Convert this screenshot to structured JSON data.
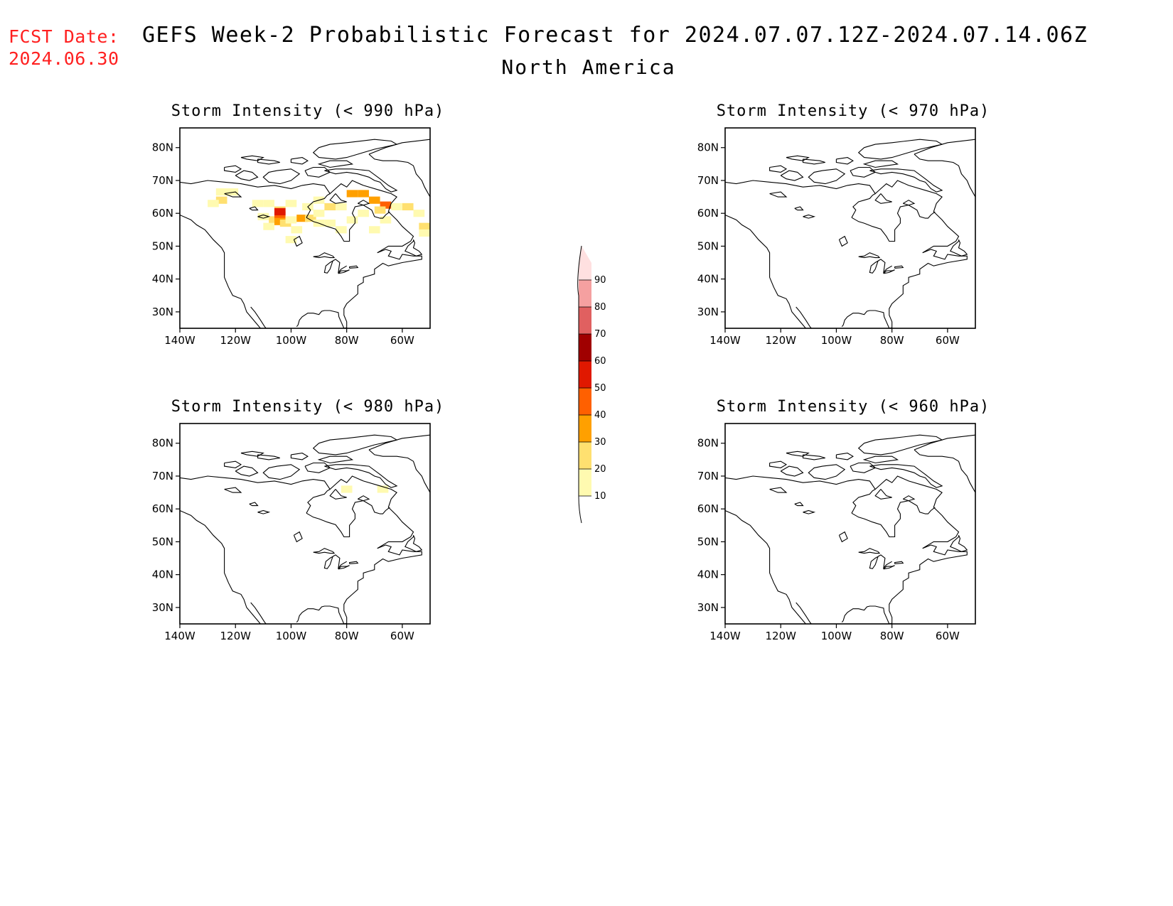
{
  "header": {
    "fcst_label": "FCST Date:",
    "fcst_date": "2024.06.30",
    "title": "GEFS Week-2 Probabilistic Forecast for 2024.07.07.12Z-2024.07.14.06Z",
    "region": "North America"
  },
  "axes": {
    "lat_ticks": [
      "80N",
      "70N",
      "60N",
      "50N",
      "40N",
      "30N"
    ],
    "lon_ticks": [
      "140W",
      "120W",
      "100W",
      "80W",
      "60W"
    ],
    "lat_range": [
      25,
      86
    ],
    "lon_range": [
      -140,
      -50
    ]
  },
  "panels": [
    {
      "id": "p990",
      "title": "Storm Intensity (< 990 hPa)",
      "threshold_hpa": 990,
      "has_data": true
    },
    {
      "id": "p970",
      "title": "Storm Intensity (< 970 hPa)",
      "threshold_hpa": 970,
      "has_data": false
    },
    {
      "id": "p980",
      "title": "Storm Intensity (< 980 hPa)",
      "threshold_hpa": 980,
      "has_data": true
    },
    {
      "id": "p960",
      "title": "Storm Intensity (< 960 hPa)",
      "threshold_hpa": 960,
      "has_data": false
    }
  ],
  "colorbar": {
    "unit": "%",
    "labels": [
      "10",
      "20",
      "30",
      "40",
      "50",
      "60",
      "70",
      "80",
      "90"
    ],
    "colors": [
      "#fffab0",
      "#ffe070",
      "#ffa000",
      "#ff6000",
      "#e01800",
      "#a00000",
      "#e06060",
      "#f5a0a0",
      "#ffe0e0"
    ]
  },
  "prob_fields": {
    "p990": [
      {
        "lon": -125,
        "lat": 66.5,
        "p": 15
      },
      {
        "lon": -121,
        "lat": 66.5,
        "p": 15
      },
      {
        "lon": -125,
        "lat": 64,
        "p": 25
      },
      {
        "lon": -128,
        "lat": 63,
        "p": 15
      },
      {
        "lon": -112,
        "lat": 63,
        "p": 15
      },
      {
        "lon": -108,
        "lat": 63,
        "p": 15
      },
      {
        "lon": -100,
        "lat": 63,
        "p": 15
      },
      {
        "lon": -104,
        "lat": 61,
        "p": 25
      },
      {
        "lon": -110,
        "lat": 59,
        "p": 15
      },
      {
        "lon": -106,
        "lat": 58,
        "p": 25
      },
      {
        "lon": -104,
        "lat": 59.5,
        "p": 45
      },
      {
        "lon": -104,
        "lat": 60.5,
        "p": 55
      },
      {
        "lon": -104,
        "lat": 57.5,
        "p": 35
      },
      {
        "lon": -102,
        "lat": 57,
        "p": 25
      },
      {
        "lon": -100,
        "lat": 58,
        "p": 15
      },
      {
        "lon": -96,
        "lat": 58.5,
        "p": 35
      },
      {
        "lon": -93,
        "lat": 58.5,
        "p": 25
      },
      {
        "lon": -90,
        "lat": 57,
        "p": 15
      },
      {
        "lon": -86,
        "lat": 57,
        "p": 15
      },
      {
        "lon": -82,
        "lat": 55,
        "p": 15
      },
      {
        "lon": -98,
        "lat": 55,
        "p": 15
      },
      {
        "lon": -108,
        "lat": 56,
        "p": 15
      },
      {
        "lon": -100,
        "lat": 52,
        "p": 15
      },
      {
        "lon": -90,
        "lat": 64,
        "p": 15
      },
      {
        "lon": -86,
        "lat": 62,
        "p": 25
      },
      {
        "lon": -82,
        "lat": 62,
        "p": 15
      },
      {
        "lon": -78,
        "lat": 66,
        "p": 35
      },
      {
        "lon": -74,
        "lat": 66,
        "p": 35
      },
      {
        "lon": -70,
        "lat": 64,
        "p": 35
      },
      {
        "lon": -66,
        "lat": 62.5,
        "p": 45
      },
      {
        "lon": -68,
        "lat": 61,
        "p": 25
      },
      {
        "lon": -62,
        "lat": 62,
        "p": 15
      },
      {
        "lon": -58,
        "lat": 62,
        "p": 25
      },
      {
        "lon": -54,
        "lat": 60,
        "p": 15
      },
      {
        "lon": -52,
        "lat": 56,
        "p": 25
      },
      {
        "lon": -52,
        "lat": 54,
        "p": 15
      },
      {
        "lon": -66,
        "lat": 58,
        "p": 15
      },
      {
        "lon": -74,
        "lat": 60,
        "p": 15
      },
      {
        "lon": -78,
        "lat": 58,
        "p": 15
      },
      {
        "lon": -90,
        "lat": 60,
        "p": 15
      },
      {
        "lon": -94,
        "lat": 62,
        "p": 15
      },
      {
        "lon": -70,
        "lat": 55,
        "p": 15
      }
    ],
    "p980": [
      {
        "lon": -80,
        "lat": 66,
        "p": 15
      },
      {
        "lon": -67,
        "lat": 66,
        "p": 15
      }
    ]
  },
  "coastlines": [
    [
      [
        -168,
        66
      ],
      [
        -162,
        68
      ],
      [
        -156,
        71.3
      ],
      [
        -150,
        70.5
      ],
      [
        -142,
        69.7
      ],
      [
        -136,
        69
      ],
      [
        -130,
        70
      ],
      [
        -124,
        69.5
      ],
      [
        -118,
        69
      ],
      [
        -112,
        68
      ],
      [
        -106,
        68.5
      ],
      [
        -100,
        67.5
      ],
      [
        -96,
        68.5
      ],
      [
        -92,
        69
      ],
      [
        -88,
        68.5
      ],
      [
        -86,
        66
      ],
      [
        -84,
        67.5
      ],
      [
        -82,
        69
      ],
      [
        -80,
        68
      ],
      [
        -78,
        70
      ],
      [
        -74,
        68.5
      ],
      [
        -68,
        67
      ],
      [
        -64,
        66
      ],
      [
        -62,
        65
      ],
      [
        -64,
        63
      ],
      [
        -65,
        60.5
      ],
      [
        -62,
        58
      ],
      [
        -60,
        56
      ],
      [
        -56,
        53
      ],
      [
        -57,
        51.5
      ],
      [
        -60,
        50
      ],
      [
        -65,
        50
      ],
      [
        -69,
        48
      ],
      [
        -66,
        49
      ],
      [
        -64,
        48.5
      ],
      [
        -65,
        47
      ],
      [
        -61,
        46
      ],
      [
        -60,
        47.5
      ],
      [
        -56,
        47
      ],
      [
        -53,
        47
      ],
      [
        -53,
        46
      ],
      [
        -60,
        45
      ],
      [
        -65,
        44
      ],
      [
        -67,
        44.8
      ],
      [
        -70,
        43
      ],
      [
        -70,
        41.5
      ],
      [
        -72,
        41
      ],
      [
        -74,
        40.5
      ],
      [
        -74,
        39
      ],
      [
        -76,
        38
      ],
      [
        -76,
        37
      ],
      [
        -76,
        35.5
      ],
      [
        -78,
        34
      ],
      [
        -80,
        32.5
      ],
      [
        -81,
        31
      ],
      [
        -81,
        29
      ],
      [
        -80,
        27
      ],
      [
        -80,
        25.2
      ],
      [
        -81,
        25
      ],
      [
        -82,
        27
      ],
      [
        -82.8,
        28.5
      ],
      [
        -83,
        29.8
      ],
      [
        -84,
        30
      ],
      [
        -86,
        30.4
      ],
      [
        -88,
        30.4
      ],
      [
        -89,
        30.2
      ],
      [
        -90,
        29.2
      ],
      [
        -92,
        29.6
      ],
      [
        -94,
        29.6
      ],
      [
        -96,
        28.5
      ],
      [
        -97,
        27.5
      ],
      [
        -97.5,
        26
      ]
    ],
    [
      [
        -98,
        25.5
      ],
      [
        -97.5,
        26
      ]
    ],
    [
      [
        -168,
        55
      ],
      [
        -162,
        56
      ],
      [
        -158,
        57.5
      ],
      [
        -154,
        58.5
      ],
      [
        -152,
        60
      ],
      [
        -150,
        61
      ],
      [
        -146,
        60.5
      ],
      [
        -140,
        59.5
      ],
      [
        -136,
        58
      ],
      [
        -134,
        56.5
      ],
      [
        -131,
        55
      ],
      [
        -130,
        54
      ],
      [
        -128,
        52
      ],
      [
        -125,
        49.5
      ],
      [
        -124,
        48
      ],
      [
        -124,
        46
      ],
      [
        -124,
        43
      ],
      [
        -124,
        40.5
      ],
      [
        -122.5,
        37.5
      ],
      [
        -121,
        35
      ],
      [
        -118,
        34
      ],
      [
        -117,
        32.5
      ],
      [
        -116,
        30
      ],
      [
        -114,
        28
      ],
      [
        -112,
        26
      ],
      [
        -110,
        24
      ]
    ],
    [
      [
        -114.5,
        31.5
      ],
      [
        -113,
        30
      ],
      [
        -111,
        27.5
      ],
      [
        -109.5,
        25.5
      ],
      [
        -108,
        24
      ]
    ],
    [
      [
        -94.5,
        58.7
      ],
      [
        -92,
        57.5
      ],
      [
        -90,
        57
      ],
      [
        -87,
        56
      ],
      [
        -84,
        55.2
      ],
      [
        -82,
        53
      ],
      [
        -81,
        51.5
      ],
      [
        -79,
        51.5
      ],
      [
        -79,
        53
      ],
      [
        -79,
        55
      ],
      [
        -77,
        57
      ],
      [
        -77,
        58.5
      ],
      [
        -78,
        60
      ],
      [
        -77,
        62
      ],
      [
        -74,
        62.5
      ],
      [
        -71,
        61
      ],
      [
        -70,
        59
      ],
      [
        -68,
        58.5
      ],
      [
        -67,
        58.5
      ],
      [
        -66,
        59.5
      ],
      [
        -64.5,
        60.5
      ]
    ],
    [
      [
        -94.5,
        58.7
      ],
      [
        -93,
        61
      ],
      [
        -94,
        62
      ],
      [
        -92,
        63.5
      ],
      [
        -90,
        64
      ],
      [
        -88,
        64.5
      ],
      [
        -87,
        65.5
      ],
      [
        -86,
        66
      ]
    ],
    [
      [
        -76,
        63
      ],
      [
        -74,
        64
      ],
      [
        -72,
        63
      ],
      [
        -74,
        62.5
      ],
      [
        -76,
        63
      ]
    ],
    [
      [
        -84,
        66
      ],
      [
        -82,
        64
      ],
      [
        -80,
        63.5
      ],
      [
        -84,
        63
      ],
      [
        -86,
        64
      ],
      [
        -84,
        66
      ]
    ],
    [
      [
        -88,
        73
      ],
      [
        -84,
        72
      ],
      [
        -80,
        72.5
      ],
      [
        -76,
        72
      ],
      [
        -72,
        71
      ],
      [
        -70,
        70
      ],
      [
        -68,
        69.5
      ],
      [
        -66,
        67.5
      ],
      [
        -64,
        66.5
      ],
      [
        -62,
        67
      ],
      [
        -65,
        68.5
      ],
      [
        -68,
        70.5
      ],
      [
        -72,
        73
      ],
      [
        -78,
        73.5
      ],
      [
        -84,
        73.5
      ],
      [
        -88,
        73
      ]
    ],
    [
      [
        -95,
        73
      ],
      [
        -92,
        74
      ],
      [
        -88,
        74
      ],
      [
        -86,
        72.5
      ],
      [
        -90,
        71
      ],
      [
        -94,
        71.5
      ],
      [
        -95,
        73
      ]
    ],
    [
      [
        -105,
        73
      ],
      [
        -100,
        73.5
      ],
      [
        -97,
        72
      ],
      [
        -100,
        70
      ],
      [
        -104,
        69
      ],
      [
        -108,
        69.5
      ],
      [
        -110,
        71
      ],
      [
        -108,
        72.5
      ],
      [
        -105,
        73
      ]
    ],
    [
      [
        -120,
        71.5
      ],
      [
        -117,
        73
      ],
      [
        -114,
        72.5
      ],
      [
        -112,
        71
      ],
      [
        -115,
        70
      ],
      [
        -118,
        70.5
      ],
      [
        -120,
        71.5
      ]
    ],
    [
      [
        -124,
        74
      ],
      [
        -120,
        74.5
      ],
      [
        -118,
        73.5
      ],
      [
        -120,
        72.5
      ],
      [
        -124,
        73
      ],
      [
        -124,
        74
      ]
    ],
    [
      [
        -112,
        76.5
      ],
      [
        -106,
        76
      ],
      [
        -104,
        75.5
      ],
      [
        -108,
        75
      ],
      [
        -112,
        75.5
      ],
      [
        -112,
        76.5
      ]
    ],
    [
      [
        -100,
        76.5
      ],
      [
        -96,
        77
      ],
      [
        -94,
        76
      ],
      [
        -96,
        75
      ],
      [
        -100,
        75.5
      ],
      [
        -100,
        76.5
      ]
    ],
    [
      [
        -90,
        80
      ],
      [
        -86,
        81
      ],
      [
        -80,
        81.5
      ],
      [
        -70,
        82.5
      ],
      [
        -64,
        82
      ],
      [
        -62,
        81
      ],
      [
        -70,
        79.5
      ],
      [
        -76,
        78
      ],
      [
        -80,
        77
      ],
      [
        -84,
        76.5
      ],
      [
        -90,
        77
      ],
      [
        -92,
        78.5
      ],
      [
        -90,
        80
      ]
    ],
    [
      [
        -118,
        77
      ],
      [
        -114,
        77.5
      ],
      [
        -110,
        77
      ],
      [
        -112,
        76
      ],
      [
        -116,
        76.5
      ],
      [
        -118,
        77
      ]
    ],
    [
      [
        -82,
        74.5
      ],
      [
        -78,
        75
      ],
      [
        -80,
        76
      ],
      [
        -86,
        76
      ],
      [
        -90,
        75
      ],
      [
        -86,
        74
      ],
      [
        -82,
        74.5
      ]
    ],
    [
      [
        -72,
        78
      ],
      [
        -66,
        80
      ],
      [
        -60,
        81.5
      ],
      [
        -50,
        82.5
      ],
      [
        -40,
        83.5
      ],
      [
        -30,
        83.5
      ],
      [
        -25,
        82
      ]
    ],
    [
      [
        -72,
        78
      ],
      [
        -70,
        76.5
      ],
      [
        -67,
        76
      ],
      [
        -62,
        76
      ],
      [
        -58,
        75.5
      ],
      [
        -56,
        74.5
      ],
      [
        -55,
        72
      ],
      [
        -53,
        70
      ],
      [
        -52,
        68
      ],
      [
        -50,
        65
      ],
      [
        -46,
        62
      ],
      [
        -44,
        60
      ],
      [
        -42,
        61
      ],
      [
        -40,
        65
      ],
      [
        -36,
        66
      ]
    ],
    [
      [
        -56,
        52
      ],
      [
        -55.5,
        51
      ],
      [
        -56,
        49.5
      ],
      [
        -54,
        48.5
      ],
      [
        -53,
        47.5
      ],
      [
        -55,
        47
      ],
      [
        -57.5,
        48
      ],
      [
        -59,
        48.5
      ],
      [
        -58,
        50
      ],
      [
        -56,
        51.5
      ],
      [
        -56,
        52
      ]
    ],
    [
      [
        -80,
        44
      ],
      [
        -82,
        43
      ],
      [
        -83,
        42
      ],
      [
        -82.5,
        45
      ],
      [
        -84,
        46
      ],
      [
        -86,
        45
      ],
      [
        -87.5,
        44
      ],
      [
        -88,
        42
      ],
      [
        -87,
        41.8
      ],
      [
        -86,
        43
      ],
      [
        -85,
        45.5
      ],
      [
        -84.5,
        45.8
      ]
    ],
    [
      [
        -92,
        46.8
      ],
      [
        -90,
        47
      ],
      [
        -88,
        48
      ],
      [
        -85,
        47
      ],
      [
        -84.5,
        46.5
      ],
      [
        -86,
        46.5
      ],
      [
        -88,
        46.8
      ],
      [
        -90,
        46.5
      ],
      [
        -92,
        46.8
      ]
    ],
    [
      [
        -79,
        43.3
      ],
      [
        -76,
        43.5
      ],
      [
        -76.5,
        44
      ],
      [
        -79,
        43.7
      ],
      [
        -79,
        43.3
      ]
    ],
    [
      [
        -83,
        41.7
      ],
      [
        -81,
        42
      ],
      [
        -79,
        42.8
      ],
      [
        -80,
        42.5
      ],
      [
        -82,
        42.5
      ],
      [
        -83,
        41.7
      ]
    ],
    [
      [
        -99,
        52
      ],
      [
        -97,
        53
      ],
      [
        -96,
        51
      ],
      [
        -98,
        50
      ],
      [
        -99,
        52
      ]
    ],
    [
      [
        -112,
        59
      ],
      [
        -110,
        59.5
      ],
      [
        -108,
        59
      ],
      [
        -110,
        58.5
      ],
      [
        -112,
        59
      ]
    ],
    [
      [
        -115,
        61.5
      ],
      [
        -113,
        62
      ],
      [
        -112,
        61
      ],
      [
        -114,
        61
      ],
      [
        -115,
        61.5
      ]
    ],
    [
      [
        -124,
        66
      ],
      [
        -120,
        66.5
      ],
      [
        -118,
        65
      ],
      [
        -121,
        65
      ],
      [
        -124,
        66
      ]
    ],
    [
      [
        -83,
        10
      ],
      [
        -83,
        10
      ]
    ]
  ]
}
